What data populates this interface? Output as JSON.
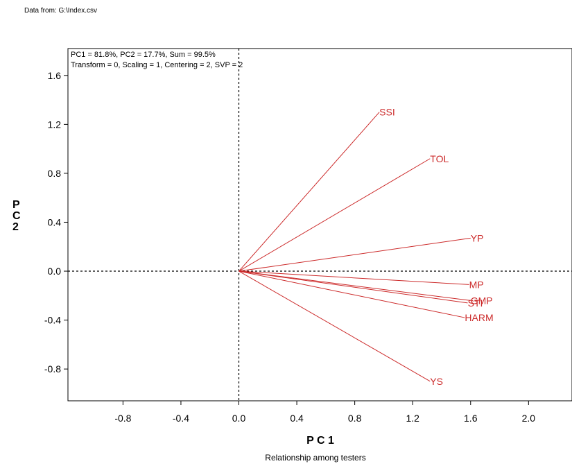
{
  "source_note": "Data from: G:\\Index.csv",
  "chart_data": {
    "type": "scatter",
    "title": "",
    "caption": "Relationship among testers",
    "xlabel": "P C 1",
    "ylabel": "P\nC\n2",
    "stats_line1": "PC1 = 81.8%, PC2 = 17.7%, Sum = 99.5%",
    "stats_line2": "Transform = 0, Scaling = 1, Centering = 2, SVP = 2",
    "xlim": [
      -1.18,
      2.3
    ],
    "ylim": [
      -1.06,
      1.82
    ],
    "xticks": [
      -0.8,
      -0.4,
      0.0,
      0.4,
      0.8,
      1.2,
      1.6,
      2.0
    ],
    "xtick_labels": [
      "-0.8",
      "-0.4",
      "0.0",
      "0.4",
      "0.8",
      "1.2",
      "1.6",
      "2.0"
    ],
    "yticks": [
      1.6,
      1.2,
      0.8,
      0.4,
      0.0,
      -0.4,
      -0.8
    ],
    "ytick_labels": [
      "1.6",
      "1.2",
      "0.8",
      "0.4",
      "0.0",
      "-0.4",
      "-0.8"
    ],
    "reference_lines": {
      "x": 0,
      "y": 0,
      "style": "dotted"
    },
    "vector_color": "#cc2a2a",
    "vectors": [
      {
        "name": "SSI",
        "x": 0.97,
        "y": 1.3
      },
      {
        "name": "TOL",
        "x": 1.32,
        "y": 0.92
      },
      {
        "name": "YP",
        "x": 1.6,
        "y": 0.27
      },
      {
        "name": "MP",
        "x": 1.59,
        "y": -0.11
      },
      {
        "name": "GMP",
        "x": 1.6,
        "y": -0.24
      },
      {
        "name": "STI",
        "x": 1.58,
        "y": -0.26
      },
      {
        "name": "HARM",
        "x": 1.56,
        "y": -0.38
      },
      {
        "name": "YS",
        "x": 1.32,
        "y": -0.9
      }
    ]
  }
}
